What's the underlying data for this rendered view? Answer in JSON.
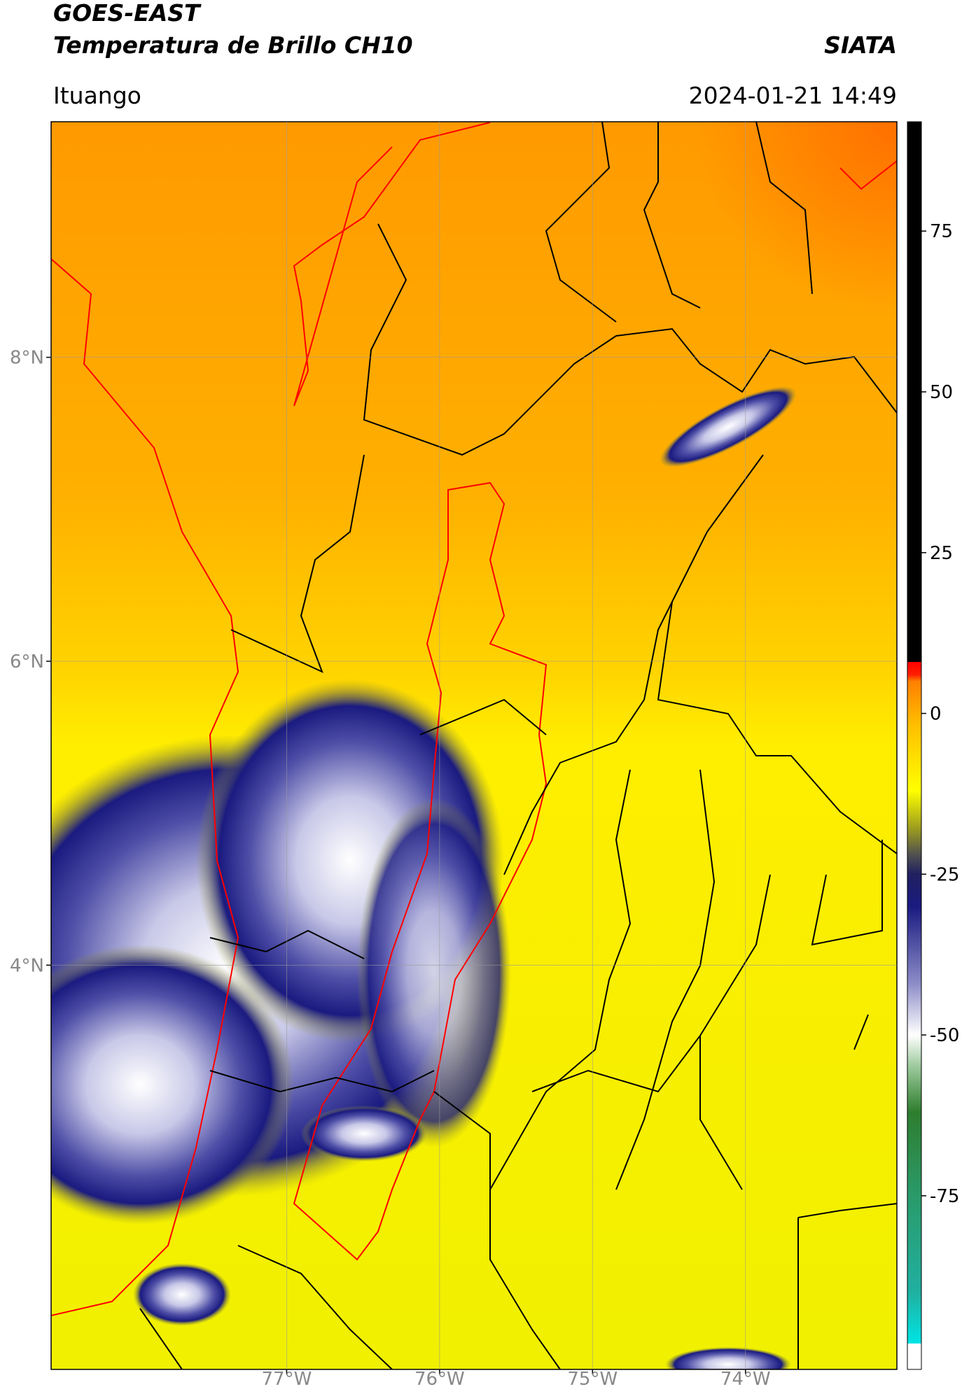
{
  "header": {
    "title": "GOES-EAST",
    "subtitle": "Temperatura de Brillo CH10",
    "brand": "SIATA",
    "location": "Ituango",
    "datetime": "2024-01-21 14:49"
  },
  "map": {
    "lat_range": [
      1.34,
      9.55
    ],
    "lon_range": [
      -78.54,
      -73.01
    ],
    "lat_ticks": [
      {
        "value": 8,
        "label": "8°N"
      },
      {
        "value": 6,
        "label": "6°N"
      },
      {
        "value": 4,
        "label": "4°N"
      }
    ],
    "lon_ticks": [
      {
        "value": -77,
        "label": "77°W"
      },
      {
        "value": -76,
        "label": "76°W"
      },
      {
        "value": -75,
        "label": "75°W"
      },
      {
        "value": -74,
        "label": "74°W"
      }
    ],
    "grid": true
  },
  "colorbar": {
    "range": [
      -102,
      92
    ],
    "ticks": [
      75,
      50,
      25,
      0,
      -25,
      -50,
      -75
    ],
    "stops": [
      [
        -102,
        "#ffffff"
      ],
      [
        -98,
        "#ffffff"
      ],
      [
        -98,
        "#00e5e5"
      ],
      [
        -90,
        "#20b0a0"
      ],
      [
        -75,
        "#2a9a6a"
      ],
      [
        -62,
        "#2e7d2e"
      ],
      [
        -55,
        "#9ac89a"
      ],
      [
        -50,
        "#ffffff"
      ],
      [
        -42,
        "#8c8cc8"
      ],
      [
        -30,
        "#1a1a80"
      ],
      [
        -25,
        "#202060"
      ],
      [
        -22,
        "#505050"
      ],
      [
        -18,
        "#9a9a20"
      ],
      [
        -12,
        "#ffff00"
      ],
      [
        -2,
        "#ffc000"
      ],
      [
        5,
        "#ff8000"
      ],
      [
        6,
        "#ff2000"
      ],
      [
        8,
        "#ff0000"
      ],
      [
        8,
        "#000000"
      ],
      [
        92,
        "#000000"
      ]
    ]
  }
}
